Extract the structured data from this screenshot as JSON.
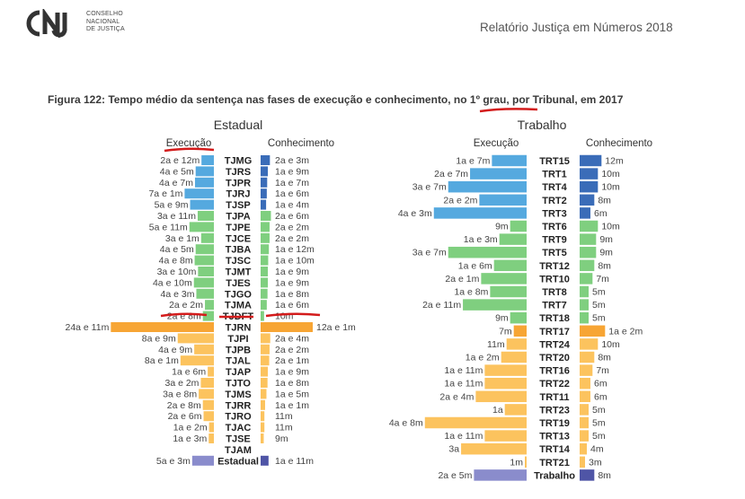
{
  "header": {
    "logo_lines": [
      "CONSELHO",
      "NACIONAL",
      "DE JUSTIÇA"
    ],
    "report_title": "Relatório Justiça em Números 2018"
  },
  "figure_title": "Figura 122: Tempo médio da sentença nas fases de execução e conhecimento, no 1º grau, por Tribunal, em 2017",
  "colors": {
    "blue_exec": "#55a9df",
    "blue_conh": "#3a6cb8",
    "green": "#7fcf7f",
    "orange": "#f7a534",
    "yellow": "#fcc35e",
    "purple": "#8a8ccc",
    "purple_dark": "#4f55a6",
    "red_mark": "#d31b1b"
  },
  "chart_data": [
    {
      "type": "bar",
      "title": "Estadual",
      "left_header": "Execução",
      "right_header": "Conhecimento",
      "scale_unit_days": 365,
      "rows": [
        {
          "label": "TJMG",
          "group": "blue",
          "exec_label": "2a e 12m",
          "exec_days": 1095,
          "conh_label": "2a e 3m",
          "conh_days": 820
        },
        {
          "label": "TJRS",
          "group": "blue",
          "exec_label": "4a e 5m",
          "exec_days": 1610,
          "conh_label": "1a e 9m",
          "conh_days": 640
        },
        {
          "label": "TJPR",
          "group": "blue",
          "exec_label": "4a e 7m",
          "exec_days": 1670,
          "conh_label": "1a e 7m",
          "conh_days": 580
        },
        {
          "label": "TJRJ",
          "group": "blue",
          "exec_label": "7a e 1m",
          "exec_days": 2585,
          "conh_label": "1a e 6m",
          "conh_days": 545
        },
        {
          "label": "TJSP",
          "group": "blue",
          "exec_label": "5a e 9m",
          "exec_days": 2100,
          "conh_label": "1a e 4m",
          "conh_days": 485
        },
        {
          "label": "TJPA",
          "group": "green",
          "exec_label": "3a e 11m",
          "exec_days": 1430,
          "conh_label": "2a e 6m",
          "conh_days": 910
        },
        {
          "label": "TJPE",
          "group": "green",
          "exec_label": "5a e 11m",
          "exec_days": 2160,
          "conh_label": "2a e 2m",
          "conh_days": 790
        },
        {
          "label": "TJCE",
          "group": "green",
          "exec_label": "3a e 1m",
          "exec_days": 1125,
          "conh_label": "2a e 2m",
          "conh_days": 790
        },
        {
          "label": "TJBA",
          "group": "green",
          "exec_label": "4a e 5m",
          "exec_days": 1610,
          "conh_label": "1a e 12m",
          "conh_days": 730
        },
        {
          "label": "TJSC",
          "group": "green",
          "exec_label": "4a e 8m",
          "exec_days": 1700,
          "conh_label": "1a e 10m",
          "conh_days": 670
        },
        {
          "label": "TJMT",
          "group": "green",
          "exec_label": "3a e 10m",
          "exec_days": 1400,
          "conh_label": "1a e 9m",
          "conh_days": 640
        },
        {
          "label": "TJES",
          "group": "green",
          "exec_label": "4a e 10m",
          "exec_days": 1765,
          "conh_label": "1a e 9m",
          "conh_days": 640
        },
        {
          "label": "TJGO",
          "group": "green",
          "exec_label": "4a e 3m",
          "exec_days": 1550,
          "conh_label": "1a e 8m",
          "conh_days": 610
        },
        {
          "label": "TJMA",
          "group": "green",
          "exec_label": "2a e 2m",
          "exec_days": 790,
          "conh_label": "1a e 6m",
          "conh_days": 545
        },
        {
          "label": "TJDFT",
          "group": "green",
          "exec_label": "2a e 8m",
          "exec_days": 975,
          "conh_label": "10m",
          "conh_days": 305
        },
        {
          "label": "TJRN",
          "group": "orange",
          "exec_label": "24a e 11m",
          "exec_days": 9100,
          "conh_label": "12a e 1m",
          "conh_days": 4410
        },
        {
          "label": "TJPI",
          "group": "yellow",
          "exec_label": "8a e 9m",
          "exec_days": 3195,
          "conh_label": "2a e 4m",
          "conh_days": 850
        },
        {
          "label": "TJPB",
          "group": "yellow",
          "exec_label": "4a e 9m",
          "exec_days": 1735,
          "conh_label": "2a e 2m",
          "conh_days": 790
        },
        {
          "label": "TJAL",
          "group": "yellow",
          "exec_label": "8a e 1m",
          "exec_days": 2950,
          "conh_label": "2a e 1m",
          "conh_days": 760
        },
        {
          "label": "TJAP",
          "group": "yellow",
          "exec_label": "1a e 6m",
          "exec_days": 545,
          "conh_label": "1a e 9m",
          "conh_days": 640
        },
        {
          "label": "TJTO",
          "group": "yellow",
          "exec_label": "3a e 2m",
          "exec_days": 1155,
          "conh_label": "1a e 8m",
          "conh_days": 610
        },
        {
          "label": "TJMS",
          "group": "yellow",
          "exec_label": "3a e 8m",
          "exec_days": 1340,
          "conh_label": "1a e 5m",
          "conh_days": 515
        },
        {
          "label": "TJRR",
          "group": "yellow",
          "exec_label": "2a e 8m",
          "exec_days": 975,
          "conh_label": "1a e 1m",
          "conh_days": 395
        },
        {
          "label": "TJRO",
          "group": "yellow",
          "exec_label": "2a e 6m",
          "exec_days": 910,
          "conh_label": "11m",
          "conh_days": 335
        },
        {
          "label": "TJAC",
          "group": "yellow",
          "exec_label": "1a e 2m",
          "exec_days": 425,
          "conh_label": "11m",
          "conh_days": 335
        },
        {
          "label": "TJSE",
          "group": "yellow",
          "exec_label": "1a e 3m",
          "exec_days": 455,
          "conh_label": "9m",
          "conh_days": 275
        },
        {
          "label": "TJAM",
          "group": "yellow",
          "exec_label": "",
          "exec_days": 0,
          "conh_label": "",
          "conh_days": 0
        },
        {
          "label": "Estadual",
          "group": "total",
          "exec_label": "5a e 3m",
          "exec_days": 1915,
          "conh_label": "1a e 11m",
          "conh_days": 700
        }
      ]
    },
    {
      "type": "bar",
      "title": "Trabalho",
      "left_header": "Execução",
      "right_header": "Conhecimento",
      "rows": [
        {
          "label": "TRT15",
          "group": "blue",
          "exec_label": "1a e 7m",
          "exec_days": 580,
          "conh_label": "12m",
          "conh_days": 365
        },
        {
          "label": "TRT1",
          "group": "blue",
          "exec_label": "2a e 7m",
          "exec_days": 945,
          "conh_label": "10m",
          "conh_days": 305
        },
        {
          "label": "TRT4",
          "group": "blue",
          "exec_label": "3a e 7m",
          "exec_days": 1310,
          "conh_label": "10m",
          "conh_days": 305
        },
        {
          "label": "TRT2",
          "group": "blue",
          "exec_label": "2a e 2m",
          "exec_days": 790,
          "conh_label": "8m",
          "conh_days": 245
        },
        {
          "label": "TRT3",
          "group": "blue",
          "exec_label": "4a e 3m",
          "exec_days": 1550,
          "conh_label": "6m",
          "conh_days": 180
        },
        {
          "label": "TRT6",
          "group": "green",
          "exec_label": "9m",
          "exec_days": 275,
          "conh_label": "10m",
          "conh_days": 305
        },
        {
          "label": "TRT9",
          "group": "green",
          "exec_label": "1a e 3m",
          "exec_days": 455,
          "conh_label": "9m",
          "conh_days": 275
        },
        {
          "label": "TRT5",
          "group": "green",
          "exec_label": "3a e 7m",
          "exec_days": 1310,
          "conh_label": "9m",
          "conh_days": 275
        },
        {
          "label": "TRT12",
          "group": "green",
          "exec_label": "1a e 6m",
          "exec_days": 545,
          "conh_label": "8m",
          "conh_days": 245
        },
        {
          "label": "TRT10",
          "group": "green",
          "exec_label": "2a e 1m",
          "exec_days": 760,
          "conh_label": "7m",
          "conh_days": 215
        },
        {
          "label": "TRT8",
          "group": "green",
          "exec_label": "1a e 8m",
          "exec_days": 610,
          "conh_label": "5m",
          "conh_days": 150
        },
        {
          "label": "TRT7",
          "group": "green",
          "exec_label": "2a e 11m",
          "exec_days": 1065,
          "conh_label": "5m",
          "conh_days": 150
        },
        {
          "label": "TRT18",
          "group": "green",
          "exec_label": "9m",
          "exec_days": 275,
          "conh_label": "5m",
          "conh_days": 150
        },
        {
          "label": "TRT17",
          "group": "orange",
          "exec_label": "7m",
          "exec_days": 215,
          "conh_label": "1a e 2m",
          "conh_days": 425
        },
        {
          "label": "TRT24",
          "group": "yellow",
          "exec_label": "11m",
          "exec_days": 335,
          "conh_label": "10m",
          "conh_days": 305
        },
        {
          "label": "TRT20",
          "group": "yellow",
          "exec_label": "1a e 2m",
          "exec_days": 425,
          "conh_label": "8m",
          "conh_days": 245
        },
        {
          "label": "TRT16",
          "group": "yellow",
          "exec_label": "1a e 11m",
          "exec_days": 700,
          "conh_label": "7m",
          "conh_days": 215
        },
        {
          "label": "TRT22",
          "group": "yellow",
          "exec_label": "1a e 11m",
          "exec_days": 700,
          "conh_label": "6m",
          "conh_days": 180
        },
        {
          "label": "TRT11",
          "group": "yellow",
          "exec_label": "2a e 4m",
          "exec_days": 850,
          "conh_label": "6m",
          "conh_days": 180
        },
        {
          "label": "TRT23",
          "group": "yellow",
          "exec_label": "1a",
          "exec_days": 365,
          "conh_label": "5m",
          "conh_days": 150
        },
        {
          "label": "TRT19",
          "group": "yellow",
          "exec_label": "4a e 8m",
          "exec_days": 1700,
          "conh_label": "5m",
          "conh_days": 150
        },
        {
          "label": "TRT13",
          "group": "yellow",
          "exec_label": "1a e 11m",
          "exec_days": 700,
          "conh_label": "5m",
          "conh_days": 150
        },
        {
          "label": "TRT14",
          "group": "yellow",
          "exec_label": "3a",
          "exec_days": 1095,
          "conh_label": "4m",
          "conh_days": 120
        },
        {
          "label": "TRT21",
          "group": "yellow",
          "exec_label": "1m",
          "exec_days": 30,
          "conh_label": "3m",
          "conh_days": 90
        },
        {
          "label": "Trabalho",
          "group": "total",
          "exec_label": "2a e 5m",
          "exec_days": 880,
          "conh_label": "8m",
          "conh_days": 245
        }
      ]
    }
  ]
}
